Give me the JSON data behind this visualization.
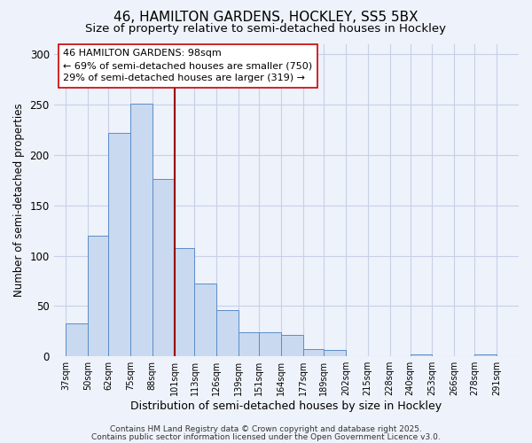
{
  "title1": "46, HAMILTON GARDENS, HOCKLEY, SS5 5BX",
  "title2": "Size of property relative to semi-detached houses in Hockley",
  "xlabel": "Distribution of semi-detached houses by size in Hockley",
  "ylabel": "Number of semi-detached properties",
  "bar_left_edges": [
    37,
    50,
    62,
    75,
    88,
    101,
    113,
    126,
    139,
    151,
    164,
    177,
    189,
    202,
    215,
    228,
    240,
    253,
    266,
    278
  ],
  "bar_widths": [
    13,
    12,
    13,
    13,
    13,
    12,
    13,
    13,
    12,
    13,
    13,
    12,
    13,
    13,
    13,
    12,
    13,
    13,
    12,
    13
  ],
  "bar_heights": [
    33,
    120,
    222,
    251,
    176,
    108,
    72,
    46,
    24,
    24,
    21,
    7,
    6,
    0,
    0,
    0,
    2,
    0,
    0,
    2
  ],
  "bar_facecolor": "#c9d9f0",
  "bar_edgecolor": "#5b8dc8",
  "xtick_labels": [
    "37sqm",
    "50sqm",
    "62sqm",
    "75sqm",
    "88sqm",
    "101sqm",
    "113sqm",
    "126sqm",
    "139sqm",
    "151sqm",
    "164sqm",
    "177sqm",
    "189sqm",
    "202sqm",
    "215sqm",
    "228sqm",
    "240sqm",
    "253sqm",
    "266sqm",
    "278sqm",
    "291sqm"
  ],
  "xtick_positions": [
    37,
    50,
    62,
    75,
    88,
    101,
    113,
    126,
    139,
    151,
    164,
    177,
    189,
    202,
    215,
    228,
    240,
    253,
    266,
    278,
    291
  ],
  "ylim": [
    0,
    310
  ],
  "xlim": [
    30,
    304
  ],
  "vline_x": 101,
  "vline_color": "#990000",
  "annotation_box_text": "46 HAMILTON GARDENS: 98sqm\n← 69% of semi-detached houses are smaller (750)\n29% of semi-detached houses are larger (319) →",
  "bg_color": "#eef2fa",
  "grid_color": "#c8d0e8",
  "footer_line1": "Contains HM Land Registry data © Crown copyright and database right 2025.",
  "footer_line2": "Contains public sector information licensed under the Open Government Licence v3.0.",
  "title1_fontsize": 11,
  "title2_fontsize": 9.5,
  "xlabel_fontsize": 9,
  "ylabel_fontsize": 8.5,
  "xtick_fontsize": 7,
  "ytick_fontsize": 8.5,
  "annotation_fontsize": 8,
  "footer_fontsize": 6.5
}
